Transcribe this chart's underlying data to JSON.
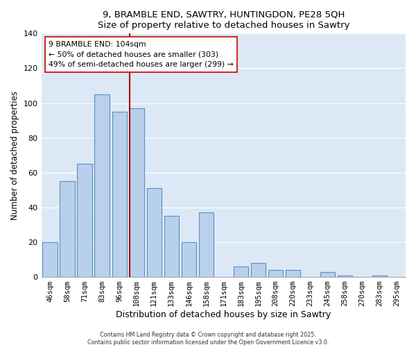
{
  "title": "9, BRAMBLE END, SAWTRY, HUNTINGDON, PE28 5QH",
  "subtitle": "Size of property relative to detached houses in Sawtry",
  "xlabel": "Distribution of detached houses by size in Sawtry",
  "ylabel": "Number of detached properties",
  "figure_bg": "#ffffff",
  "axes_bg": "#dce8f5",
  "bar_color": "#b8d0eb",
  "bar_edge_color": "#5a8fc0",
  "grid_color": "#ffffff",
  "categories": [
    "46sqm",
    "58sqm",
    "71sqm",
    "83sqm",
    "96sqm",
    "108sqm",
    "121sqm",
    "133sqm",
    "146sqm",
    "158sqm",
    "171sqm",
    "183sqm",
    "195sqm",
    "208sqm",
    "220sqm",
    "233sqm",
    "245sqm",
    "258sqm",
    "270sqm",
    "283sqm",
    "295sqm"
  ],
  "values": [
    20,
    55,
    65,
    105,
    95,
    97,
    51,
    35,
    20,
    37,
    0,
    6,
    8,
    4,
    4,
    0,
    3,
    1,
    0,
    1,
    0
  ],
  "ylim": [
    0,
    140
  ],
  "yticks": [
    0,
    20,
    40,
    60,
    80,
    100,
    120,
    140
  ],
  "vline_bar_index": 5,
  "vline_color": "#aa0000",
  "annotation_text_line1": "9 BRAMBLE END: 104sqm",
  "annotation_text_line2": "← 50% of detached houses are smaller (303)",
  "annotation_text_line3": "49% of semi-detached houses are larger (299) →",
  "footer1": "Contains HM Land Registry data © Crown copyright and database right 2025.",
  "footer2": "Contains public sector information licensed under the Open Government Licence v3.0."
}
